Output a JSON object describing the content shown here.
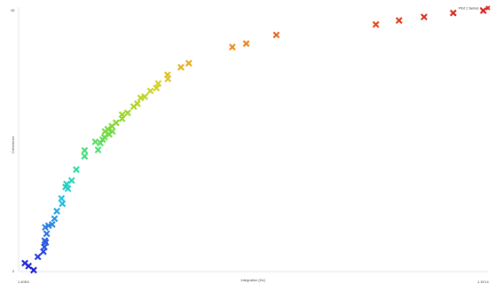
{
  "chart_data": {
    "type": "scatter",
    "xlabel": "Integration [Hz]",
    "ylabel": "Coherence",
    "x_tick_labels": [
      "1.40E6",
      "1.1E14"
    ],
    "y_tick_labels": [
      "0",
      "45"
    ],
    "xlim": [
      0,
      100
    ],
    "ylim": [
      0,
      45
    ],
    "legend": {
      "label": "Plot 1 Series 1",
      "position": "top-right"
    },
    "grid": false,
    "marker": "x",
    "colormap": [
      "#1a1ad6",
      "#2f6fe0",
      "#22c8e0",
      "#34e08a",
      "#8ad62a",
      "#d8d21e",
      "#f08a1e",
      "#d81e1e"
    ],
    "series": [
      {
        "points": [
          [
            0.2,
            1.3
          ],
          [
            1.0,
            0.8
          ],
          [
            2.1,
            0.1
          ],
          [
            3.0,
            2.4
          ],
          [
            4.4,
            4.1
          ],
          [
            4.2,
            3.3
          ],
          [
            4.7,
            4.9
          ],
          [
            4.5,
            5.2
          ],
          [
            4.9,
            6.4
          ],
          [
            4.6,
            7.5
          ],
          [
            5.3,
            7.8
          ],
          [
            6.1,
            8.0
          ],
          [
            6.6,
            9.0
          ],
          [
            7.1,
            10.3
          ],
          [
            8.3,
            11.6
          ],
          [
            8.1,
            12.5
          ],
          [
            9.0,
            14.5
          ],
          [
            9.5,
            14.2
          ],
          [
            9.2,
            15.0
          ],
          [
            10.3,
            15.6
          ],
          [
            11.3,
            17.5
          ],
          [
            13.1,
            19.8
          ],
          [
            13.1,
            20.8
          ],
          [
            15.4,
            22.3
          ],
          [
            16.0,
            20.9
          ],
          [
            16.5,
            22.1
          ],
          [
            17.0,
            22.7
          ],
          [
            17.4,
            23.1
          ],
          [
            18.4,
            23.6
          ],
          [
            17.5,
            24.1
          ],
          [
            18.1,
            24.5
          ],
          [
            19.1,
            24.1
          ],
          [
            19.0,
            25.0
          ],
          [
            19.9,
            25.6
          ],
          [
            21.2,
            26.3
          ],
          [
            21.2,
            27.0
          ],
          [
            22.4,
            27.3
          ],
          [
            23.7,
            28.4
          ],
          [
            24.5,
            28.9
          ],
          [
            25.2,
            29.9
          ],
          [
            26.1,
            30.1
          ],
          [
            27.3,
            31.1
          ],
          [
            28.6,
            31.6
          ],
          [
            29.0,
            32.4
          ],
          [
            31.1,
            33.2
          ],
          [
            31.0,
            33.9
          ],
          [
            33.9,
            35.2
          ],
          [
            35.6,
            35.9
          ],
          [
            45.0,
            38.7
          ],
          [
            48.0,
            39.3
          ],
          [
            54.5,
            40.8
          ],
          [
            76.0,
            42.6
          ],
          [
            81.0,
            43.3
          ],
          [
            86.4,
            43.9
          ],
          [
            92.7,
            44.6
          ],
          [
            99.2,
            45.0
          ]
        ]
      }
    ]
  }
}
